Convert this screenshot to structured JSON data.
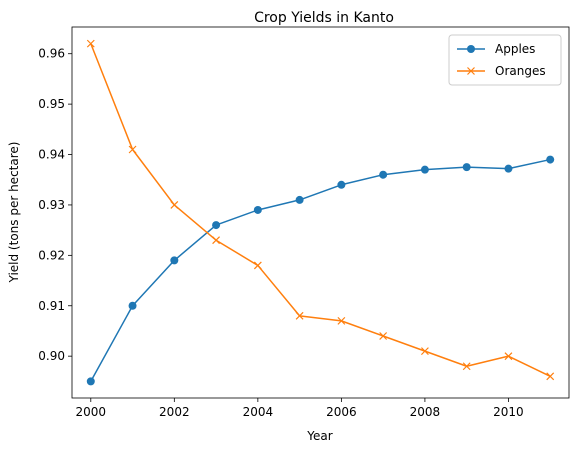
{
  "chart_data": {
    "type": "line",
    "title": "Crop Yields in Kanto",
    "xlabel": "Year",
    "ylabel": "Yield (tons per hectare)",
    "x": [
      2000,
      2001,
      2002,
      2003,
      2004,
      2005,
      2006,
      2007,
      2008,
      2009,
      2010,
      2011
    ],
    "series": [
      {
        "name": "Apples",
        "color": "#1f77b4",
        "marker": "circle",
        "values": [
          0.895,
          0.91,
          0.919,
          0.926,
          0.929,
          0.931,
          0.934,
          0.936,
          0.937,
          0.9375,
          0.9372,
          0.939
        ]
      },
      {
        "name": "Oranges",
        "color": "#ff7f0e",
        "marker": "x",
        "values": [
          0.962,
          0.941,
          0.93,
          0.923,
          0.918,
          0.908,
          0.907,
          0.904,
          0.901,
          0.898,
          0.9,
          0.896
        ]
      }
    ],
    "xlim": [
      1999.55,
      2011.45
    ],
    "ylim": [
      0.8917,
      0.9653
    ],
    "xticks": [
      2000,
      2002,
      2004,
      2006,
      2008,
      2010
    ],
    "xtick_labels": [
      "2000",
      "2002",
      "2004",
      "2006",
      "2008",
      "2010"
    ],
    "yticks": [
      0.9,
      0.91,
      0.92,
      0.93,
      0.94,
      0.95,
      0.96
    ],
    "ytick_labels": [
      "0.90",
      "0.91",
      "0.92",
      "0.93",
      "0.94",
      "0.95",
      "0.96"
    ],
    "grid": false,
    "legend": "top-right"
  }
}
